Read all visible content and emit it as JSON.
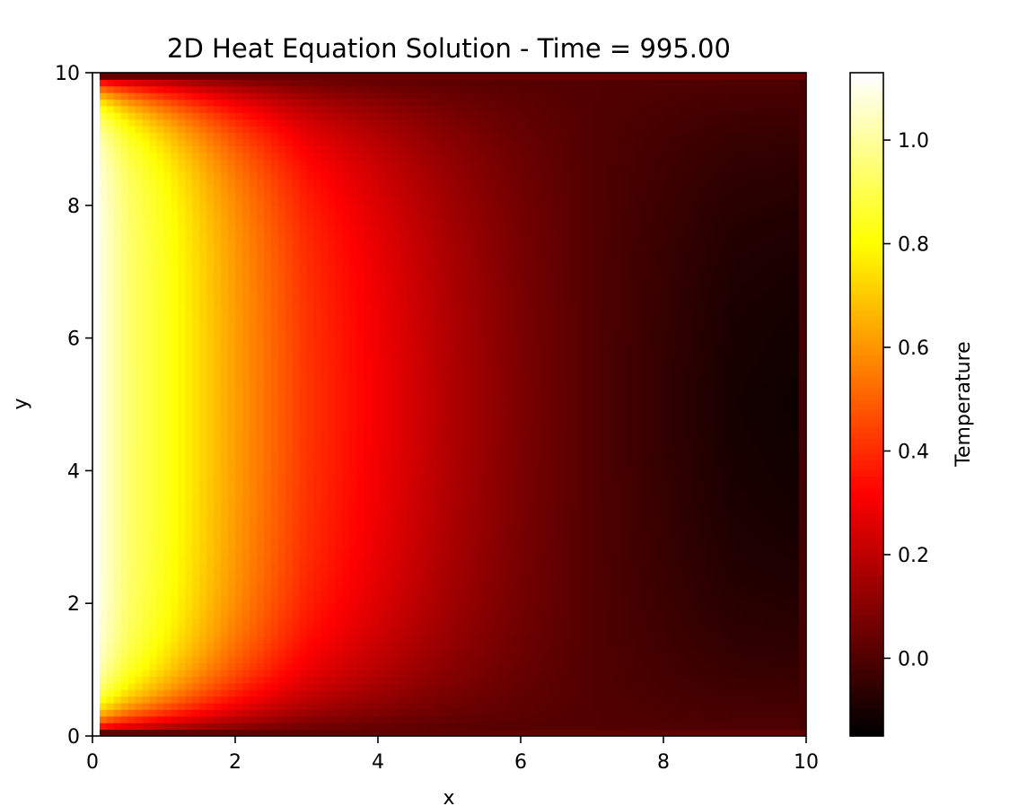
{
  "chart_data": {
    "type": "heatmap",
    "title": "2D Heat Equation Solution - Time = 995.00",
    "xlabel": "x",
    "ylabel": "y",
    "xlim": [
      0,
      10
    ],
    "ylim": [
      0,
      10
    ],
    "xticks": [
      "0",
      "2",
      "4",
      "6",
      "8",
      "10"
    ],
    "yticks": [
      "0",
      "2",
      "4",
      "6",
      "8",
      "10"
    ],
    "colormap": "hot",
    "colorbar": {
      "label": "Temperature",
      "range": [
        -0.15,
        1.13
      ],
      "ticks": [
        {
          "value": 0.0,
          "label": "0.0"
        },
        {
          "value": 0.2,
          "label": "0.2"
        },
        {
          "value": 0.4,
          "label": "0.4"
        },
        {
          "value": 0.6,
          "label": "0.6"
        },
        {
          "value": 0.8,
          "label": "0.8"
        },
        {
          "value": 1.0,
          "label": "1.0"
        }
      ]
    },
    "grid": false,
    "field_profile": {
      "description_x": [
        0,
        0.5,
        1,
        2,
        3,
        4,
        5,
        6,
        7,
        8,
        9,
        10
      ],
      "temperature_at_center_y": [
        1.13,
        0.95,
        0.85,
        0.62,
        0.42,
        0.3,
        0.18,
        0.08,
        0.0,
        -0.06,
        -0.12,
        -0.14
      ]
    }
  }
}
